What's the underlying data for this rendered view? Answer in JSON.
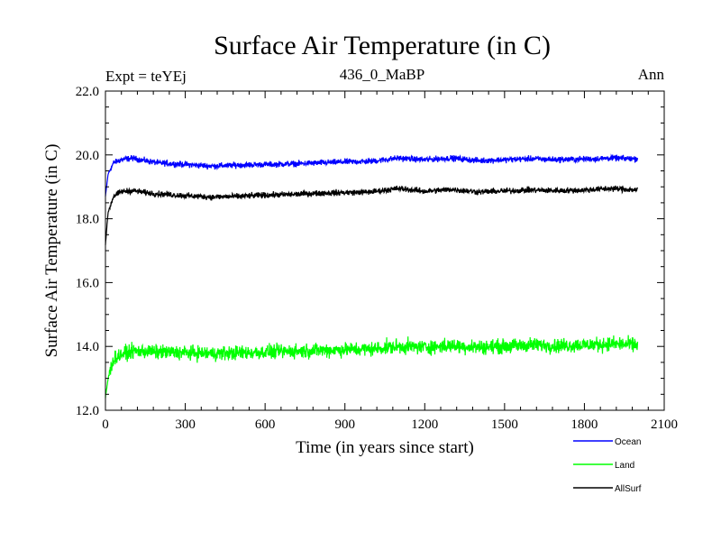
{
  "chart_data": {
    "type": "line",
    "title": "Surface Air Temperature (in C)",
    "subtitle": "436_0_MaBP",
    "left_label": "Expt = teYEj",
    "right_label": "Ann",
    "xlabel": "Time (in years since start)",
    "ylabel": "Surface Air Temperature (in C)",
    "xlim": [
      0,
      2100
    ],
    "ylim": [
      12.0,
      22.0
    ],
    "xticks": [
      0,
      300,
      600,
      900,
      1200,
      1500,
      1800,
      2100
    ],
    "xtick_labels": [
      "0",
      "300",
      "600",
      "900",
      "1200",
      "1500",
      "1800",
      "2100"
    ],
    "yticks": [
      12.0,
      14.0,
      16.0,
      18.0,
      20.0,
      22.0
    ],
    "ytick_labels": [
      "12.0",
      "14.0",
      "16.0",
      "18.0",
      "20.0",
      "22.0"
    ],
    "x_end": 2000,
    "legend": [
      {
        "name": "Ocean",
        "color": "#0000ff"
      },
      {
        "name": "Land",
        "color": "#00ff00"
      },
      {
        "name": "AllSurf",
        "color": "#000000"
      }
    ],
    "series": [
      {
        "name": "Ocean",
        "color": "#0000ff",
        "anchors_x": [
          0,
          10,
          30,
          60,
          100,
          150,
          200,
          300,
          400,
          500,
          600,
          700,
          800,
          900,
          1000,
          1100,
          1200,
          1300,
          1400,
          1500,
          1600,
          1700,
          1800,
          1900,
          2000
        ],
        "anchors_y": [
          18.7,
          19.4,
          19.75,
          19.85,
          19.9,
          19.82,
          19.75,
          19.7,
          19.65,
          19.68,
          19.7,
          19.72,
          19.75,
          19.78,
          19.8,
          19.9,
          19.85,
          19.9,
          19.82,
          19.85,
          19.88,
          19.85,
          19.87,
          19.9,
          19.88
        ],
        "noise": 0.09
      },
      {
        "name": "AllSurf",
        "color": "#000000",
        "anchors_x": [
          0,
          10,
          30,
          60,
          100,
          150,
          200,
          300,
          400,
          500,
          600,
          700,
          800,
          900,
          1000,
          1100,
          1200,
          1300,
          1400,
          1500,
          1600,
          1700,
          1800,
          1900,
          2000
        ],
        "anchors_y": [
          17.2,
          18.2,
          18.7,
          18.85,
          18.88,
          18.82,
          18.78,
          18.72,
          18.68,
          18.7,
          18.74,
          18.76,
          18.8,
          18.82,
          18.84,
          18.95,
          18.86,
          18.92,
          18.84,
          18.87,
          18.9,
          18.88,
          18.9,
          18.95,
          18.9
        ],
        "noise": 0.09
      },
      {
        "name": "Land",
        "color": "#00ff00",
        "anchors_x": [
          0,
          10,
          30,
          60,
          100,
          150,
          200,
          300,
          400,
          500,
          600,
          700,
          800,
          900,
          1000,
          1100,
          1200,
          1300,
          1400,
          1500,
          1600,
          1700,
          1800,
          1900,
          2000
        ],
        "anchors_y": [
          12.4,
          13.0,
          13.6,
          13.75,
          13.85,
          13.85,
          13.82,
          13.8,
          13.78,
          13.8,
          13.82,
          13.85,
          13.88,
          13.9,
          13.92,
          14.0,
          13.98,
          14.02,
          13.98,
          14.0,
          14.05,
          14.02,
          14.05,
          14.08,
          14.05
        ],
        "noise": 0.22
      }
    ]
  }
}
